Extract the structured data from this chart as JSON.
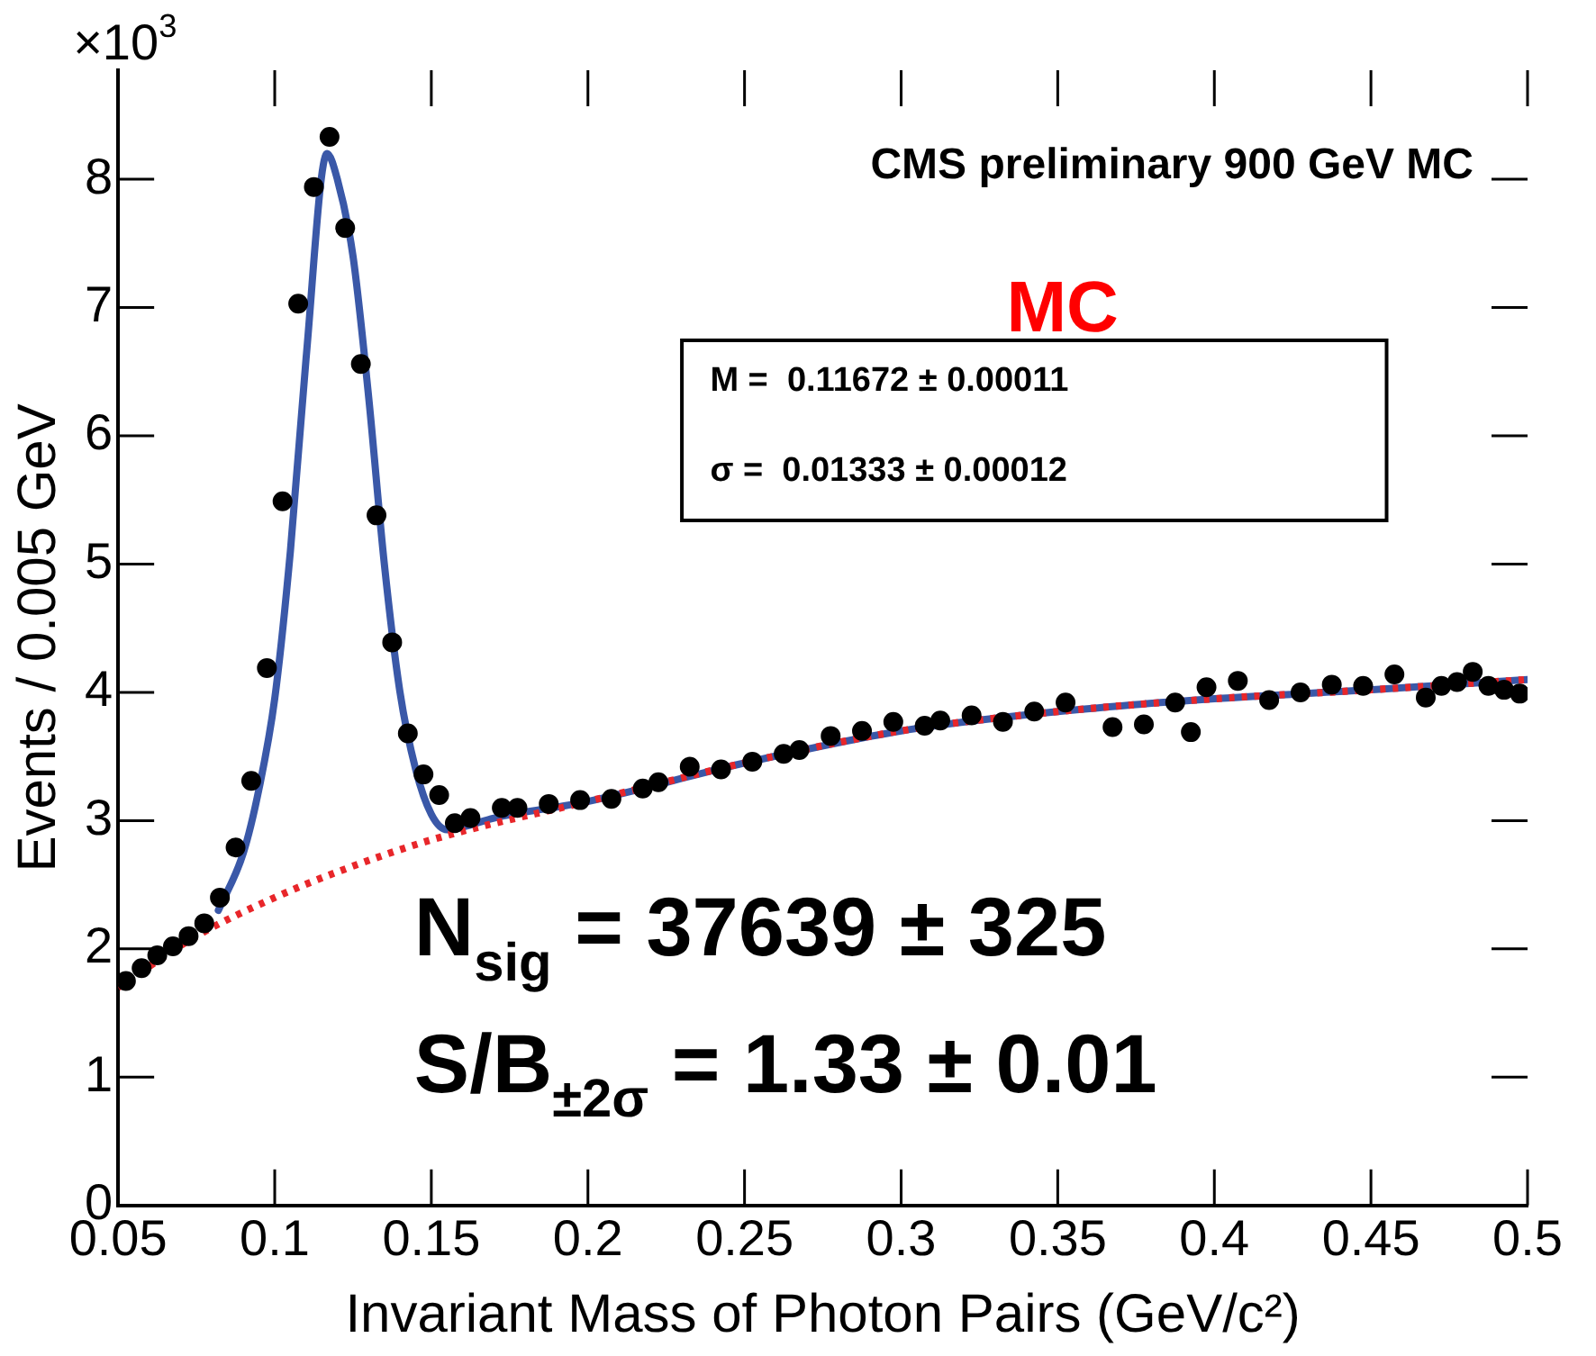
{
  "chart_data": {
    "type": "scatter",
    "xlabel": "Invariant Mass of Photon Pairs (GeV/c²)",
    "ylabel": "Events / 0.005 GeV",
    "annotations": [
      "×10$^{3}$",
      "CMS preliminary 900 GeV MC",
      "MC",
      "M =  0.11672 ± 0.00011",
      "σ =  0.01333 ± 0.00012",
      "N$_{sig}$ = 37639 ± 325",
      "S/B$_{±2σ}$ = 1.33 ± 0.01"
    ],
    "xlim": [
      0.05,
      0.5
    ],
    "xticks": [
      0.05,
      0.1,
      0.15,
      0.2,
      0.25,
      0.3,
      0.35,
      0.4,
      0.45,
      0.5
    ],
    "ylim": [
      0,
      8.85
    ],
    "yticks": [
      0,
      1,
      2,
      3,
      4,
      5,
      6,
      7,
      8
    ],
    "grid": false,
    "legend": false,
    "series": [
      {
        "type": "scatter",
        "color": "#000000",
        "marker": "circle",
        "x": [
          0.0525,
          0.0575,
          0.0625,
          0.0675,
          0.0725,
          0.0775,
          0.0825,
          0.0875,
          0.0925,
          0.0975,
          0.1025,
          0.1075,
          0.1125,
          0.1175,
          0.1225,
          0.1275,
          0.1325,
          0.1375,
          0.1425,
          0.1475,
          0.1525,
          0.1575,
          0.1625,
          0.1725,
          0.1775,
          0.1875,
          0.1975,
          0.2075,
          0.2175,
          0.2225,
          0.2325,
          0.2425,
          0.2525,
          0.2625,
          0.2675,
          0.2775,
          0.2875,
          0.2975,
          0.3075,
          0.3125,
          0.3225,
          0.3325,
          0.3425,
          0.3525,
          0.3675,
          0.3775,
          0.3875,
          0.3925,
          0.3975,
          0.4075,
          0.4175,
          0.4275,
          0.4375,
          0.4475,
          0.4575,
          0.4675,
          0.4725,
          0.4775,
          0.4825,
          0.4875,
          0.4925,
          0.4975
        ],
        "values": [
          1.75,
          1.85,
          1.95,
          2.02,
          2.1,
          2.2,
          2.4,
          2.79,
          3.31,
          4.19,
          5.49,
          7.03,
          7.94,
          8.33,
          7.62,
          6.56,
          5.38,
          4.39,
          3.68,
          3.36,
          3.2,
          2.98,
          3.02,
          3.1,
          3.1,
          3.13,
          3.16,
          3.17,
          3.25,
          3.3,
          3.42,
          3.4,
          3.46,
          3.52,
          3.55,
          3.66,
          3.7,
          3.77,
          3.74,
          3.78,
          3.82,
          3.77,
          3.85,
          3.92,
          3.73,
          3.75,
          3.92,
          3.69,
          4.04,
          4.09,
          3.94,
          4.0,
          4.06,
          4.05,
          4.14,
          3.96,
          4.05,
          4.08,
          4.16,
          4.05,
          4.02,
          3.99
        ]
      },
      {
        "type": "line",
        "color": "#3a58a8",
        "line_style": "solid",
        "x": [
          0.082,
          0.09,
          0.095,
          0.1,
          0.105,
          0.11,
          0.1167,
          0.12,
          0.125,
          0.13,
          0.135,
          0.14,
          0.145,
          0.15,
          0.155,
          0.16,
          0.17,
          0.2,
          0.25,
          0.3,
          0.35,
          0.4,
          0.45,
          0.5
        ],
        "values": [
          2.3,
          2.75,
          3.25,
          3.95,
          5.1,
          6.6,
          8.2,
          8.0,
          7.4,
          6.3,
          5.0,
          4.0,
          3.4,
          3.05,
          2.93,
          2.95,
          3.02,
          3.15,
          3.45,
          3.7,
          3.85,
          3.95,
          4.02,
          4.1
        ]
      },
      {
        "type": "line",
        "color": "#e8262a",
        "line_style": "dotted",
        "x": [
          0.05,
          0.075,
          0.1,
          0.12,
          0.15,
          0.2,
          0.25,
          0.3,
          0.35,
          0.4,
          0.45,
          0.5
        ],
        "values": [
          1.7,
          2.1,
          2.4,
          2.6,
          2.85,
          3.15,
          3.45,
          3.7,
          3.85,
          3.95,
          4.02,
          4.1
        ]
      }
    ]
  }
}
